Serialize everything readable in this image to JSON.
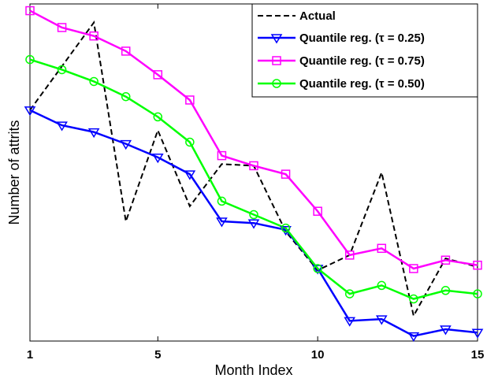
{
  "chart_data": {
    "type": "line",
    "xlabel": "Month Index",
    "ylabel": "Number of attrits",
    "xlim": [
      1,
      15
    ],
    "ylim": [
      0,
      100
    ],
    "x_ticks": [
      1,
      5,
      10,
      15
    ],
    "y_ticks_labeled": false,
    "grid": false,
    "legend_position": "top-right",
    "x": [
      1,
      2,
      3,
      4,
      5,
      6,
      7,
      8,
      9,
      10,
      11,
      12,
      13,
      14,
      15
    ],
    "series": [
      {
        "name": "Actual",
        "color": "#000000",
        "dash": "dashed",
        "marker": "none",
        "values": [
          68.5,
          81.5,
          94.5,
          35.5,
          62.5,
          40.0,
          52.5,
          52.0,
          32.5,
          21.0,
          25.5,
          50.0,
          7.5,
          24.5,
          22.0
        ]
      },
      {
        "name": "Quantile reg. (τ = 0.25)",
        "color": "#0000ff",
        "dash": "solid",
        "marker": "triangle-down",
        "values": [
          68.5,
          64.0,
          62.0,
          58.5,
          54.5,
          49.5,
          35.5,
          35.0,
          33.0,
          21.5,
          6.0,
          6.5,
          1.5,
          3.5,
          2.5
        ]
      },
      {
        "name": "Quantile reg. (τ = 0.75)",
        "color": "#ff00ff",
        "dash": "solid",
        "marker": "square",
        "values": [
          98.0,
          93.0,
          90.5,
          86.0,
          79.0,
          71.5,
          55.0,
          52.0,
          49.5,
          38.5,
          25.5,
          27.5,
          21.5,
          24.0,
          22.5
        ]
      },
      {
        "name": "Quantile reg. (τ = 0.50)",
        "color": "#00ff00",
        "dash": "solid",
        "marker": "circle",
        "values": [
          83.5,
          80.5,
          77.0,
          72.5,
          66.5,
          59.0,
          41.5,
          37.5,
          33.5,
          21.5,
          14.0,
          16.5,
          12.5,
          15.0,
          14.0
        ]
      }
    ]
  }
}
